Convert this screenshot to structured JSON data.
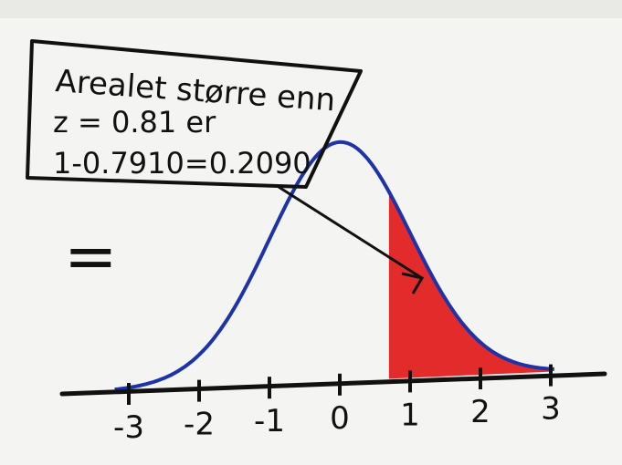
{
  "note": {
    "lines": [
      "Arealet større enn",
      "z = 0.81  er",
      "1-0.7910=0.2090"
    ]
  },
  "equals_sign": "=",
  "axis": {
    "labels": [
      "-3",
      "-2",
      "-1",
      "0",
      "1",
      "2",
      "3"
    ]
  }
}
